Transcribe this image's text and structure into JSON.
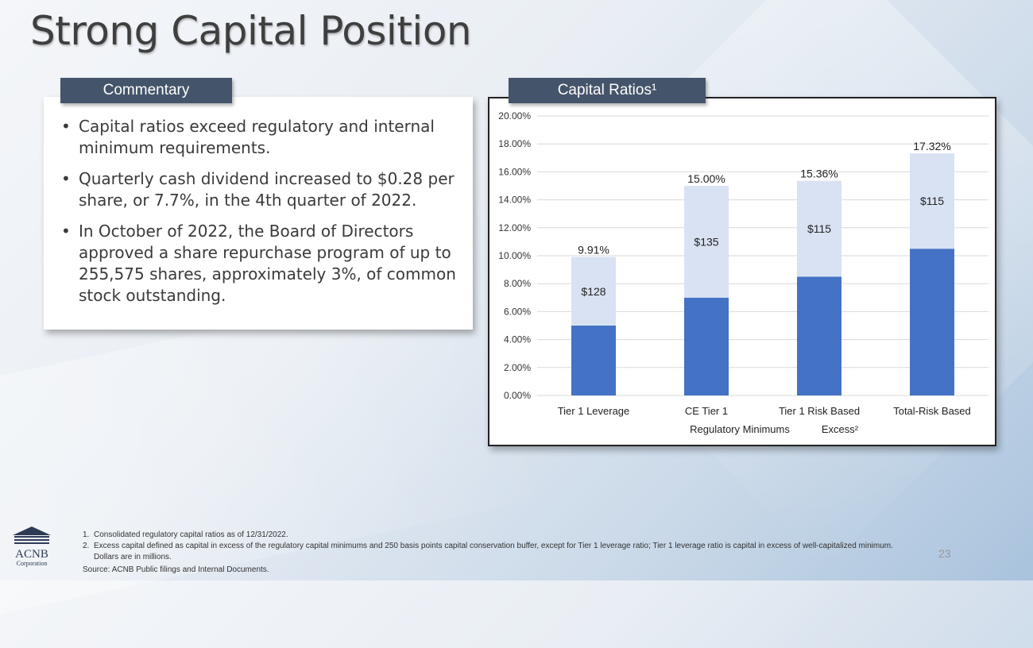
{
  "title": "Strong Capital Position",
  "commentary": {
    "tab_label": "Commentary",
    "bullets": [
      "Capital ratios exceed regulatory and internal minimum requirements.",
      "Quarterly cash dividend increased to $0.28 per share, or 7.7%, in the 4th quarter of 2022.",
      "In October of 2022, the Board of Directors approved a share repurchase program of up to 255,575 shares, approximately 3%, of common stock outstanding."
    ]
  },
  "chart_tab_label": "Capital Ratios¹",
  "chart_data": {
    "type": "bar",
    "stacked": true,
    "categories": [
      "Tier 1 Leverage",
      "CE Tier 1",
      "Tier 1 Risk Based",
      "Total-Risk Based"
    ],
    "series": [
      {
        "name": "Regulatory Minimums",
        "values": [
          5.0,
          7.0,
          8.5,
          10.5
        ],
        "color": "#4472c4"
      },
      {
        "name": "Excess²",
        "values": [
          4.91,
          8.0,
          6.86,
          6.82
        ],
        "color": "#d9e2f3"
      }
    ],
    "totals_labels": [
      "9.91%",
      "15.00%",
      "15.36%",
      "17.32%"
    ],
    "excess_labels": [
      "$128",
      "$135",
      "$115",
      "$115"
    ],
    "y_ticks": [
      "0.00%",
      "2.00%",
      "4.00%",
      "6.00%",
      "8.00%",
      "10.00%",
      "12.00%",
      "14.00%",
      "16.00%",
      "18.00%",
      "20.00%"
    ],
    "ylim": [
      0,
      20
    ],
    "grid": true,
    "legend_position": "bottom"
  },
  "logo": {
    "line1": "ACNB",
    "line2": "Corporation"
  },
  "footnotes": [
    {
      "num": "1.",
      "text": "Consolidated regulatory capital ratios as of 12/31/2022."
    },
    {
      "num": "2.",
      "text": "Excess capital defined as capital in excess of the regulatory capital minimums and 250 basis points capital conservation buffer, except for Tier 1 leverage ratio; Tier 1 leverage ratio is capital in excess of well-capitalized minimum.  Dollars are in millions."
    }
  ],
  "source": "Source:  ACNB Public filings and Internal Documents.",
  "page_number": "23"
}
